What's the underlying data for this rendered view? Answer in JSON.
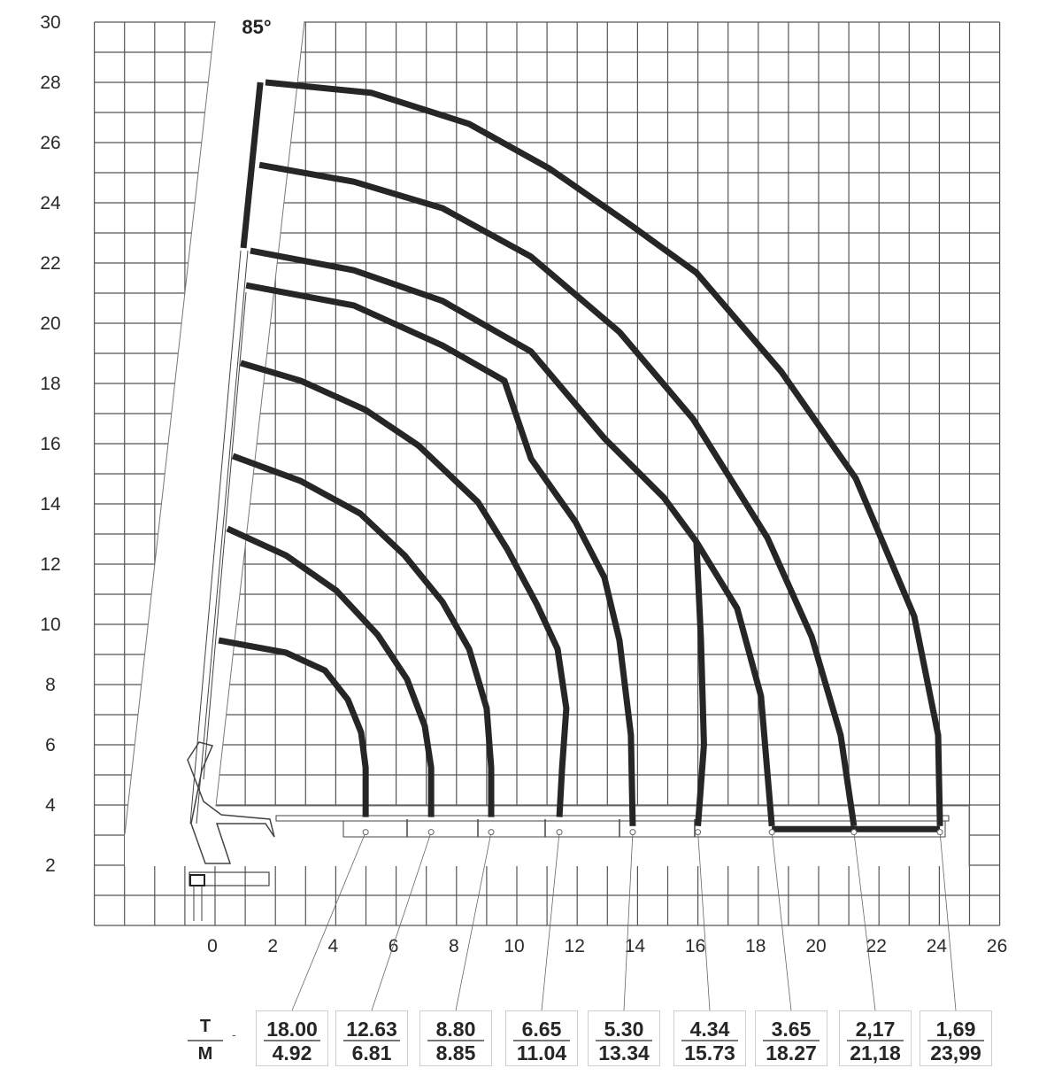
{
  "chart_data": {
    "type": "line",
    "title": "",
    "xlabel": "",
    "ylabel": "",
    "xlim": [
      -4,
      26
    ],
    "ylim": [
      0,
      30
    ],
    "grid": true,
    "x_ticks": [
      "0",
      "2",
      "4",
      "6",
      "8",
      "10",
      "12",
      "14",
      "16",
      "18",
      "20",
      "22",
      "24",
      "26"
    ],
    "y_ticks": [
      "2",
      "4",
      "6",
      "8",
      "10",
      "12",
      "14",
      "16",
      "18",
      "20",
      "22",
      "24",
      "26",
      "28",
      "30"
    ],
    "annotation": "85°",
    "line_color": "#262626",
    "curves": [
      {
        "points": [
          [
            0.12,
            9.47
          ],
          [
            2.35,
            9.06
          ],
          [
            3.64,
            8.47
          ],
          [
            4.4,
            7.5
          ],
          [
            4.84,
            6.41
          ],
          [
            4.99,
            5.24
          ],
          [
            4.99,
            3.6
          ]
        ]
      },
      {
        "points": [
          [
            0.41,
            13.18
          ],
          [
            2.35,
            12.29
          ],
          [
            4.02,
            11.12
          ],
          [
            5.39,
            9.65
          ],
          [
            6.36,
            8.18
          ],
          [
            6.95,
            6.62
          ],
          [
            7.16,
            5.24
          ],
          [
            7.16,
            3.6
          ]
        ]
      },
      {
        "points": [
          [
            0.59,
            15.59
          ],
          [
            2.84,
            14.76
          ],
          [
            4.81,
            13.68
          ],
          [
            6.28,
            12.29
          ],
          [
            7.54,
            10.74
          ],
          [
            8.42,
            9.18
          ],
          [
            9.0,
            7.21
          ],
          [
            9.15,
            5.24
          ],
          [
            9.15,
            3.6
          ]
        ]
      },
      {
        "points": [
          [
            0.85,
            18.68
          ],
          [
            2.84,
            18.09
          ],
          [
            4.99,
            17.12
          ],
          [
            6.74,
            15.94
          ],
          [
            8.71,
            14.06
          ],
          [
            9.68,
            12.5
          ],
          [
            10.67,
            10.65
          ],
          [
            11.35,
            9.18
          ],
          [
            11.64,
            7.21
          ],
          [
            11.5,
            5.24
          ],
          [
            11.41,
            3.6
          ]
        ]
      },
      {
        "points": [
          [
            1.03,
            21.26
          ],
          [
            4.6,
            20.59
          ],
          [
            7.54,
            19.26
          ],
          [
            9.59,
            18.09
          ],
          [
            10.47,
            15.5
          ],
          [
            11.94,
            13.41
          ],
          [
            12.9,
            11.56
          ],
          [
            13.4,
            9.47
          ],
          [
            13.78,
            6.32
          ],
          [
            13.84,
            3.3
          ]
        ]
      },
      {
        "points": [
          [
            1.17,
            22.41
          ],
          [
            4.6,
            21.76
          ],
          [
            7.54,
            20.74
          ],
          [
            10.47,
            19.06
          ],
          [
            12.9,
            16.18
          ],
          [
            14.87,
            14.21
          ],
          [
            15.95,
            12.74
          ],
          [
            17.3,
            10.53
          ],
          [
            18.09,
            7.62
          ],
          [
            18.45,
            3.3
          ]
        ]
      },
      {
        "points": [
          [
            15.95,
            12.74
          ],
          [
            16.1,
            9.5
          ],
          [
            16.2,
            6.0
          ],
          [
            16.0,
            3.3
          ]
        ]
      },
      {
        "points": [
          [
            1.47,
            25.26
          ],
          [
            4.6,
            24.7
          ],
          [
            7.54,
            23.82
          ],
          [
            10.47,
            22.21
          ],
          [
            13.4,
            19.71
          ],
          [
            15.84,
            16.82
          ],
          [
            18.3,
            12.88
          ],
          [
            19.77,
            9.59
          ],
          [
            20.73,
            6.32
          ],
          [
            21.17,
            3.3
          ]
        ]
      },
      {
        "points": [
          [
            1.67,
            28.0
          ],
          [
            5.19,
            27.65
          ],
          [
            8.42,
            26.62
          ],
          [
            11.06,
            25.15
          ],
          [
            13.61,
            23.38
          ],
          [
            15.95,
            21.68
          ],
          [
            18.77,
            18.38
          ],
          [
            21.23,
            14.85
          ],
          [
            23.17,
            10.26
          ],
          [
            23.96,
            6.32
          ],
          [
            24.02,
            3.3
          ]
        ]
      },
      {
        "points": [
          [
            18.45,
            3.2
          ],
          [
            24.02,
            3.2
          ]
        ]
      },
      {
        "points": [
          [
            1.5,
            28.0
          ],
          [
            0.94,
            22.5
          ]
        ]
      }
    ],
    "load_table": {
      "row_labels": {
        "top": "T",
        "bottom": "M"
      },
      "separator": "-",
      "entries": [
        {
          "load": "18.00",
          "radius": "4.92",
          "r": 4.99
        },
        {
          "load": "12.63",
          "radius": "6.81",
          "r": 7.16
        },
        {
          "load": "8.80",
          "radius": "8.85",
          "r": 9.15
        },
        {
          "load": "6.65",
          "radius": "11.04",
          "r": 11.41
        },
        {
          "load": "5.30",
          "radius": "13.34",
          "r": 13.84
        },
        {
          "load": "4.34",
          "radius": "15.73",
          "r": 16.0
        },
        {
          "load": "3.65",
          "radius": "18.27",
          "r": 18.45
        },
        {
          "load": "2,17",
          "radius": "21,18",
          "r": 21.17
        },
        {
          "load": "1,69",
          "radius": "23,99",
          "r": 24.02
        }
      ]
    }
  }
}
